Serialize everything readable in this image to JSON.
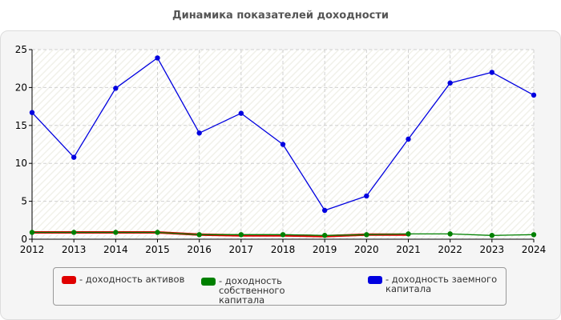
{
  "title": "Динамика показателей доходности",
  "colors": {
    "assets": "#e00000",
    "equity": "#008000",
    "debt": "#0000e0"
  },
  "legend": {
    "items": [
      {
        "label": "- доходность активов"
      },
      {
        "label": "- доходность собственного\nкапитала"
      },
      {
        "label": "- доходность заемного\nкапитала"
      }
    ]
  },
  "chart_data": {
    "type": "line",
    "title": "Динамика показателей доходности",
    "xlabel": "",
    "ylabel": "",
    "x": [
      "2012",
      "2013",
      "2014",
      "2015",
      "2016",
      "2017",
      "2018",
      "2019",
      "2020",
      "2021",
      "2022",
      "2023",
      "2024"
    ],
    "ylim": [
      0,
      25
    ],
    "yticks": [
      0,
      5,
      10,
      15,
      20,
      25
    ],
    "grid": true,
    "legend_position": "bottom",
    "series": [
      {
        "name": "доходность активов",
        "color": "#e00000",
        "markers": false,
        "values": [
          0.9,
          0.9,
          0.9,
          0.9,
          0.6,
          0.5,
          0.5,
          0.4,
          0.6,
          0.6,
          null,
          null,
          null
        ]
      },
      {
        "name": "доходность собственного капитала",
        "color": "#008000",
        "markers": true,
        "values": [
          0.9,
          0.9,
          0.9,
          0.9,
          0.6,
          0.6,
          0.6,
          0.5,
          0.6,
          0.7,
          0.7,
          0.5,
          0.6
        ]
      },
      {
        "name": "доходность заемного капитала",
        "color": "#0000e0",
        "markers": true,
        "values": [
          16.7,
          10.8,
          19.9,
          23.9,
          14.0,
          16.6,
          12.5,
          3.8,
          5.7,
          13.2,
          20.6,
          22.0,
          19.0
        ]
      }
    ]
  }
}
